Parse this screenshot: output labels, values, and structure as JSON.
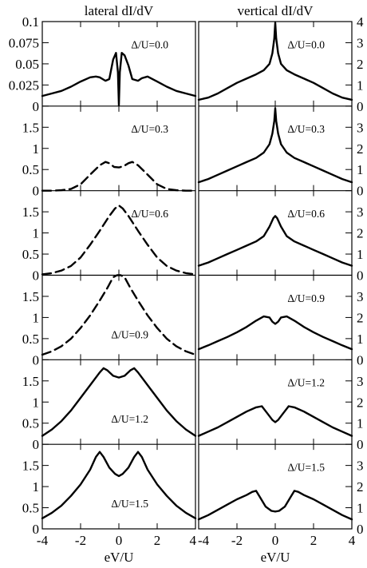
{
  "chart_data": [
    {
      "type": "line",
      "title": "lateral dI/dV",
      "xlabel": "eV/U",
      "x_ticks": [
        -4,
        -2,
        0,
        2,
        4
      ],
      "xlim": [
        -4,
        4
      ],
      "panels": [
        {
          "label": "Δ/U=0.0",
          "ylim": [
            0,
            0.1
          ],
          "y_ticks": [
            "0",
            "0.025",
            "0.05",
            "0.075",
            "0.1"
          ],
          "line_style": "solid",
          "x": [
            -4,
            -3.5,
            -3,
            -2.5,
            -2,
            -1.5,
            -1.2,
            -1,
            -0.7,
            -0.5,
            -0.3,
            -0.15,
            -0.05,
            0,
            0.05,
            0.15,
            0.3,
            0.5,
            0.7,
            1,
            1.2,
            1.5,
            2,
            2.5,
            3,
            3.5,
            4
          ],
          "y": [
            0.012,
            0.015,
            0.018,
            0.023,
            0.029,
            0.034,
            0.035,
            0.034,
            0.03,
            0.032,
            0.055,
            0.063,
            0.04,
            0.001,
            0.04,
            0.063,
            0.06,
            0.048,
            0.032,
            0.03,
            0.033,
            0.035,
            0.029,
            0.023,
            0.018,
            0.015,
            0.012
          ]
        },
        {
          "label": "Δ/U=0.3",
          "ylim": [
            0,
            2
          ],
          "y_ticks": [
            "0",
            "0.5",
            "1",
            "1.5"
          ],
          "line_style": "dashed",
          "x": [
            -4,
            -3.5,
            -3,
            -2.5,
            -2,
            -1.5,
            -1,
            -0.7,
            -0.5,
            -0.25,
            0,
            0.25,
            0.5,
            0.7,
            1,
            1.5,
            2,
            2.5,
            3,
            3.5,
            4
          ],
          "y": [
            0,
            0,
            0.01,
            0.04,
            0.15,
            0.38,
            0.6,
            0.68,
            0.65,
            0.56,
            0.55,
            0.58,
            0.65,
            0.68,
            0.6,
            0.38,
            0.15,
            0.04,
            0.01,
            0,
            0
          ]
        },
        {
          "label": "Δ/U=0.6",
          "ylim": [
            0,
            2
          ],
          "y_ticks": [
            "0",
            "0.5",
            "1",
            "1.5"
          ],
          "line_style": "dashed",
          "x": [
            -4,
            -3.5,
            -3,
            -2.5,
            -2,
            -1.5,
            -1,
            -0.5,
            -0.2,
            0,
            0.2,
            0.5,
            1,
            1.5,
            2,
            2.5,
            3,
            3.5,
            4
          ],
          "y": [
            0.02,
            0.05,
            0.11,
            0.22,
            0.42,
            0.72,
            1.05,
            1.4,
            1.58,
            1.65,
            1.58,
            1.4,
            1.05,
            0.72,
            0.42,
            0.22,
            0.11,
            0.05,
            0.02
          ]
        },
        {
          "label": "Δ/U=0.9",
          "ylim": [
            0,
            2
          ],
          "y_ticks": [
            "0",
            "0.5",
            "1",
            "1.5"
          ],
          "line_style": "dashed",
          "x": [
            -4,
            -3.5,
            -3,
            -2.5,
            -2,
            -1.5,
            -1,
            -0.6,
            -0.3,
            -0.1,
            0,
            0.1,
            0.3,
            0.6,
            1,
            1.5,
            2,
            2.5,
            3,
            3.5,
            4
          ],
          "y": [
            0.12,
            0.2,
            0.32,
            0.5,
            0.75,
            1.05,
            1.4,
            1.7,
            1.95,
            2.0,
            2.0,
            2.0,
            1.95,
            1.7,
            1.4,
            1.05,
            0.75,
            0.5,
            0.32,
            0.2,
            0.12
          ]
        },
        {
          "label": "Δ/U=1.2",
          "ylim": [
            0,
            2
          ],
          "y_ticks": [
            "0",
            "0.5",
            "1",
            "1.5"
          ],
          "line_style": "solid",
          "x": [
            -4,
            -3.5,
            -3,
            -2.5,
            -2,
            -1.5,
            -1,
            -0.8,
            -0.6,
            -0.3,
            0,
            0.3,
            0.6,
            0.8,
            1,
            1.5,
            2,
            2.5,
            3,
            3.5,
            4
          ],
          "y": [
            0.2,
            0.35,
            0.55,
            0.8,
            1.1,
            1.4,
            1.7,
            1.8,
            1.75,
            1.62,
            1.58,
            1.62,
            1.75,
            1.8,
            1.7,
            1.4,
            1.1,
            0.8,
            0.55,
            0.35,
            0.2
          ]
        },
        {
          "label": "Δ/U=1.5",
          "ylim": [
            0,
            2
          ],
          "y_ticks": [
            "0",
            "0.5",
            "1",
            "1.5"
          ],
          "line_style": "solid",
          "x": [
            -4,
            -3.5,
            -3,
            -2.5,
            -2,
            -1.5,
            -1.2,
            -1,
            -0.8,
            -0.5,
            -0.2,
            0,
            0.2,
            0.5,
            0.8,
            1,
            1.2,
            1.5,
            2,
            2.5,
            3,
            3.5,
            4
          ],
          "y": [
            0.25,
            0.38,
            0.55,
            0.78,
            1.05,
            1.4,
            1.7,
            1.82,
            1.7,
            1.45,
            1.3,
            1.25,
            1.3,
            1.45,
            1.7,
            1.82,
            1.7,
            1.4,
            1.05,
            0.78,
            0.55,
            0.38,
            0.25
          ]
        }
      ]
    },
    {
      "type": "line",
      "title": "vertical dI/dV",
      "xlabel": "eV/U",
      "x_ticks": [
        -4,
        -2,
        0,
        2,
        4
      ],
      "xlim": [
        -4,
        4
      ],
      "panels": [
        {
          "label": "Δ/U=0.0",
          "ylim": [
            0,
            4
          ],
          "y_ticks": [
            "0",
            "1",
            "2",
            "3",
            "4"
          ],
          "line_style": "solid",
          "x": [
            -4,
            -3.5,
            -3,
            -2.5,
            -2,
            -1.5,
            -1,
            -0.6,
            -0.3,
            -0.15,
            -0.05,
            0,
            0.05,
            0.15,
            0.3,
            0.6,
            1,
            1.5,
            2,
            2.5,
            3,
            3.5,
            4
          ],
          "y": [
            0.3,
            0.4,
            0.6,
            0.85,
            1.1,
            1.3,
            1.5,
            1.7,
            2.0,
            2.5,
            3.2,
            3.95,
            3.2,
            2.5,
            2.0,
            1.7,
            1.5,
            1.3,
            1.1,
            0.85,
            0.6,
            0.4,
            0.3
          ]
        },
        {
          "label": "Δ/U=0.3",
          "ylim": [
            0,
            4
          ],
          "y_ticks": [
            "0",
            "1",
            "2",
            "3"
          ],
          "line_style": "solid",
          "x": [
            -4,
            -3.5,
            -3,
            -2.5,
            -2,
            -1.5,
            -1,
            -0.6,
            -0.3,
            -0.15,
            -0.05,
            0,
            0.05,
            0.15,
            0.3,
            0.6,
            1,
            1.5,
            2,
            2.5,
            3,
            3.5,
            4
          ],
          "y": [
            0.4,
            0.55,
            0.75,
            0.95,
            1.15,
            1.35,
            1.55,
            1.8,
            2.2,
            2.7,
            3.3,
            3.9,
            3.3,
            2.7,
            2.2,
            1.8,
            1.55,
            1.35,
            1.15,
            0.95,
            0.75,
            0.55,
            0.4
          ]
        },
        {
          "label": "Δ/U=0.6",
          "ylim": [
            0,
            4
          ],
          "y_ticks": [
            "0",
            "1",
            "2",
            "3"
          ],
          "line_style": "solid",
          "x": [
            -4,
            -3.5,
            -3,
            -2.5,
            -2,
            -1.5,
            -1,
            -0.6,
            -0.3,
            -0.1,
            0,
            0.1,
            0.3,
            0.6,
            1,
            1.5,
            2,
            2.5,
            3,
            3.5,
            4
          ],
          "y": [
            0.45,
            0.6,
            0.8,
            1.0,
            1.2,
            1.4,
            1.6,
            1.85,
            2.3,
            2.7,
            2.8,
            2.7,
            2.3,
            1.85,
            1.6,
            1.4,
            1.2,
            1.0,
            0.8,
            0.6,
            0.45
          ]
        },
        {
          "label": "Δ/U=0.9",
          "ylim": [
            0,
            4
          ],
          "y_ticks": [
            "0",
            "1",
            "2",
            "3"
          ],
          "line_style": "solid",
          "x": [
            -4,
            -3.5,
            -3,
            -2.5,
            -2,
            -1.5,
            -1,
            -0.6,
            -0.3,
            -0.15,
            0,
            0.15,
            0.3,
            0.6,
            1,
            1.5,
            2,
            2.5,
            3,
            3.5,
            4
          ],
          "y": [
            0.5,
            0.68,
            0.88,
            1.08,
            1.3,
            1.55,
            1.85,
            2.05,
            2.0,
            1.8,
            1.7,
            1.8,
            2.0,
            2.05,
            1.85,
            1.55,
            1.3,
            1.08,
            0.88,
            0.68,
            0.5
          ]
        },
        {
          "label": "Δ/U=1.2",
          "ylim": [
            0,
            4
          ],
          "y_ticks": [
            "0",
            "1",
            "2",
            "3"
          ],
          "line_style": "solid",
          "x": [
            -4,
            -3.5,
            -3,
            -2.5,
            -2,
            -1.5,
            -1,
            -0.7,
            -0.4,
            -0.15,
            0,
            0.15,
            0.4,
            0.7,
            1,
            1.5,
            2,
            2.5,
            3,
            3.5,
            4
          ],
          "y": [
            0.4,
            0.6,
            0.8,
            1.05,
            1.3,
            1.55,
            1.75,
            1.8,
            1.45,
            1.15,
            1.05,
            1.15,
            1.45,
            1.8,
            1.75,
            1.55,
            1.3,
            1.05,
            0.8,
            0.6,
            0.4
          ]
        },
        {
          "label": "Δ/U=1.5",
          "ylim": [
            0,
            4
          ],
          "y_ticks": [
            "0",
            "1",
            "2",
            "3"
          ],
          "line_style": "solid",
          "x": [
            -4,
            -3.5,
            -3,
            -2.5,
            -2,
            -1.5,
            -1.2,
            -1,
            -0.8,
            -0.5,
            -0.2,
            0,
            0.2,
            0.5,
            0.8,
            1,
            1.2,
            1.5,
            2,
            2.5,
            3,
            3.5,
            4
          ],
          "y": [
            0.45,
            0.65,
            0.9,
            1.15,
            1.4,
            1.6,
            1.75,
            1.8,
            1.5,
            1.05,
            0.85,
            0.82,
            0.85,
            1.05,
            1.5,
            1.8,
            1.75,
            1.6,
            1.4,
            1.15,
            0.9,
            0.65,
            0.45
          ]
        }
      ]
    }
  ]
}
